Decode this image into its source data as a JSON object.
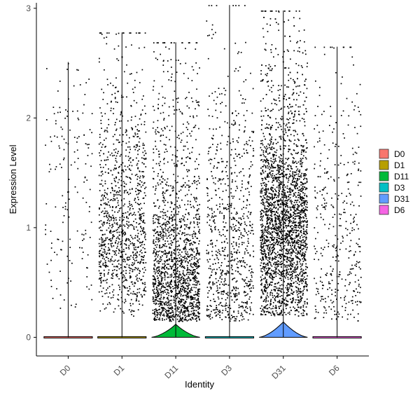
{
  "chart_data": {
    "type": "violin",
    "xlabel": "Identity",
    "ylabel": "Expression Level",
    "ylim": [
      -0.17,
      3.05
    ],
    "yticks": [
      "0",
      "1",
      "2",
      "3"
    ],
    "categories": [
      "D0",
      "D1",
      "D11",
      "D3",
      "D31",
      "D6"
    ],
    "legend": {
      "placement": "right",
      "items": [
        {
          "label": "D0",
          "color": "#F8766D"
        },
        {
          "label": "D1",
          "color": "#B79F00"
        },
        {
          "label": "D11",
          "color": "#00BA38"
        },
        {
          "label": "D3",
          "color": "#00BFC4"
        },
        {
          "label": "D31",
          "color": "#619CFF"
        },
        {
          "label": "D6",
          "color": "#F564E3"
        }
      ]
    },
    "series": [
      {
        "category": "D0",
        "color": "#F8766D",
        "max": 2.51,
        "violin_width": 0.45,
        "zero_bulge": 0.0,
        "points": 160,
        "density": "uniform"
      },
      {
        "category": "D1",
        "color": "#B79F00",
        "max": 2.78,
        "violin_width": 0.45,
        "zero_bulge": 0.0,
        "points": 1100,
        "density": "broad"
      },
      {
        "category": "D11",
        "color": "#00BA38",
        "max": 2.69,
        "violin_width": 0.45,
        "zero_bulge": 0.12,
        "points": 1700,
        "density": "low"
      },
      {
        "category": "D3",
        "color": "#00BFC4",
        "max": 3.03,
        "violin_width": 0.45,
        "zero_bulge": 0.0,
        "points": 800,
        "density": "low-mid"
      },
      {
        "category": "D31",
        "color": "#619CFF",
        "max": 2.98,
        "violin_width": 0.45,
        "zero_bulge": 0.14,
        "points": 2900,
        "density": "mid"
      },
      {
        "category": "D6",
        "color": "#F564E3",
        "max": 2.65,
        "violin_width": 0.45,
        "zero_bulge": 0.0,
        "points": 380,
        "density": "low-mid"
      }
    ]
  }
}
